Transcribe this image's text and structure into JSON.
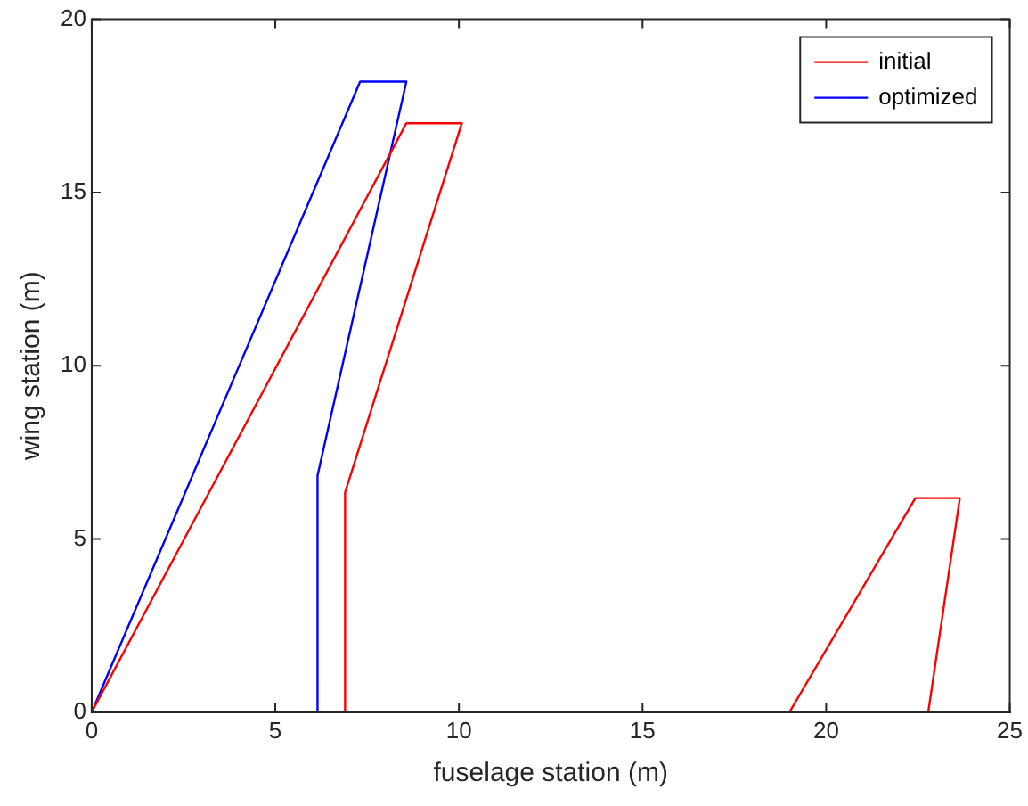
{
  "chart_data": {
    "type": "line",
    "xlabel": "fuselage station (m)",
    "ylabel": "wing station (m)",
    "xlim": [
      0,
      25
    ],
    "ylim": [
      0,
      20
    ],
    "xticks": [
      0,
      5,
      10,
      15,
      20,
      25
    ],
    "yticks": [
      0,
      5,
      10,
      15,
      20
    ],
    "grid": false,
    "legend": "top right",
    "marker": "none",
    "line_style": "solid",
    "series": [
      {
        "name": "initial",
        "color": "#ff0000",
        "x": [
          0,
          8.57,
          10.08,
          6.9,
          6.9
        ],
        "values": [
          0,
          17.0,
          17.0,
          6.34,
          0
        ]
      },
      {
        "color": "#ff0000",
        "x": [
          19.0,
          22.43,
          23.64,
          22.78
        ],
        "values": [
          0,
          6.18,
          6.18,
          0
        ]
      },
      {
        "name": "optimized",
        "color": "#0000ff",
        "x": [
          0,
          7.31,
          8.57,
          6.15,
          6.15
        ],
        "values": [
          0,
          18.2,
          18.2,
          6.83,
          0
        ]
      }
    ]
  }
}
